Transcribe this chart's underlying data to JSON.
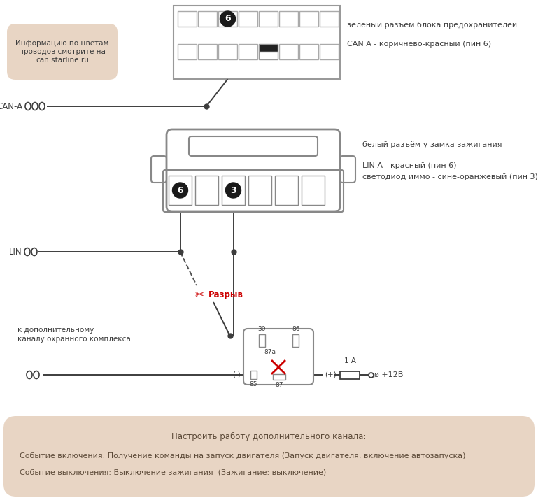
{
  "bg_color": "#ffffff",
  "info_box_color": "#e8d5c4",
  "bottom_box_color": "#e8d5c4",
  "line_color": "#3d3d3d",
  "red_color": "#cc0000",
  "text_color": "#3d3d3d",
  "info_box_text": "Информацию по цветам\nпроводов смотрите на\ncan.starline.ru",
  "right_text_top1": "зелёный разъём блока предохранителей",
  "right_text_top2": "CAN A - коричнево-красный (пин 6)",
  "right_text_mid1": "белый разъём у замка зажигания",
  "right_text_mid2": "LIN A - красный (пин 6)",
  "right_text_mid3": "светодиод иммо - сине-оранжевый (пин 3)",
  "can_label": "CAN-A",
  "lin_label": "LIN",
  "relay_label1": "к дополнительному",
  "relay_label2": "каналу охранного комплекса",
  "bottom_text1": "Настроить работу дополнительного канала:",
  "bottom_text2": "Событие включения: Получение команды на запуск двигателя (Запуск двигателя: включение автозапуска)",
  "bottom_text3": "Событие выключения: Выключение зажигания  (Зажигание: выключение)",
  "razryv_text": "Разрыв",
  "plus12_text": "ø +12В",
  "fuse_text": "1 А",
  "fig_w": 7.69,
  "fig_h": 7.15,
  "dpi": 100
}
